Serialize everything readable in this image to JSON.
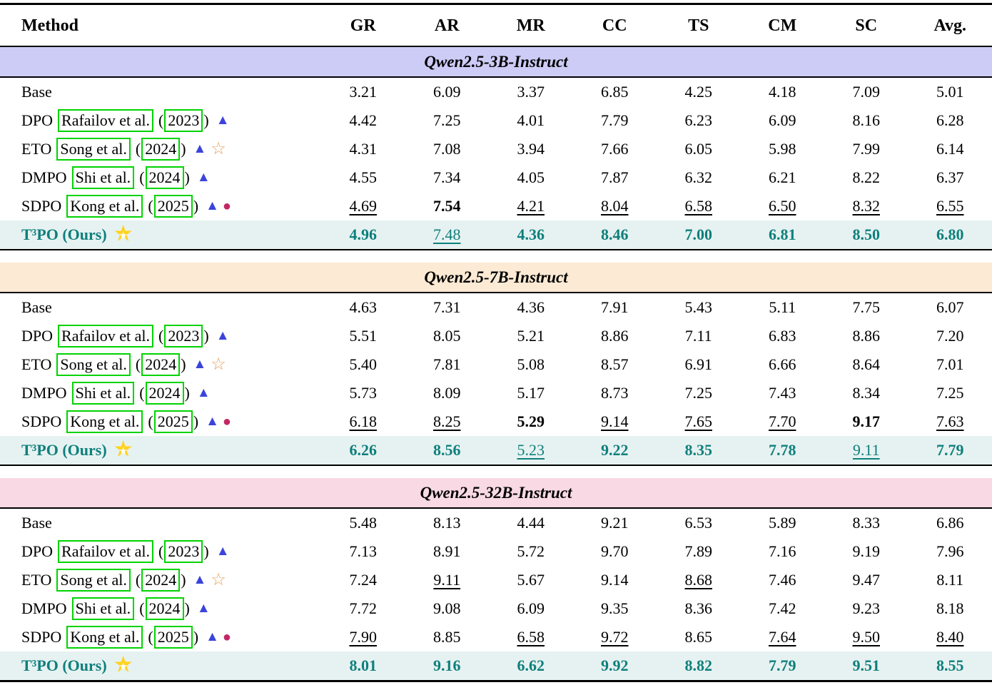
{
  "icons": {
    "triangle": "▲",
    "star_outline": "☆",
    "circle": "●",
    "gold_star": "★"
  },
  "colors": {
    "ours_text_teal": "#0e7f7c",
    "ours_row_bg": "#e6f2f1",
    "band_qwen3b": "#cdccf6",
    "band_qwen7b": "#fcead4",
    "band_qwen32b": "#f9d9e3",
    "citation_link_green": "#00d300",
    "triangle_blue": "#3b44da",
    "circle_crimson": "#c22765",
    "star_outline_orange": "#e5a05c",
    "gold_star_yellow": "#ffd21e"
  },
  "table": {
    "columns": [
      "Method",
      "GR",
      "AR",
      "MR",
      "CC",
      "TS",
      "CM",
      "SC",
      "Avg."
    ],
    "sections": [
      {
        "title": "Qwen2.5-3B-Instruct",
        "rows": [
          {
            "method": "Base",
            "values": [
              "3.21",
              "6.09",
              "3.37",
              "6.85",
              "4.25",
              "4.18",
              "7.09",
              "5.01"
            ]
          },
          {
            "method": "DPO",
            "cite_author": "Rafailov et al.",
            "cite_year": "2023",
            "values": [
              "4.42",
              "7.25",
              "4.01",
              "7.79",
              "6.23",
              "6.09",
              "8.16",
              "6.28"
            ]
          },
          {
            "method": "ETO",
            "cite_author": "Song et al.",
            "cite_year": "2024",
            "values": [
              "4.31",
              "7.08",
              "3.94",
              "7.66",
              "6.05",
              "5.98",
              "7.99",
              "6.14"
            ]
          },
          {
            "method": "DMPO",
            "cite_author": "Shi et al.",
            "cite_year": "2024",
            "values": [
              "4.55",
              "7.34",
              "4.05",
              "7.87",
              "6.32",
              "6.21",
              "8.22",
              "6.37"
            ]
          },
          {
            "method": "SDPO",
            "cite_author": "Kong et al.",
            "cite_year": "2025",
            "values": [
              "4.69",
              "7.54",
              "4.21",
              "8.04",
              "6.58",
              "6.50",
              "8.32",
              "6.55"
            ]
          },
          {
            "method": "T³PO (Ours)",
            "values": [
              "4.96",
              "7.48",
              "4.36",
              "8.46",
              "7.00",
              "6.81",
              "8.50",
              "6.80"
            ]
          }
        ]
      },
      {
        "title": "Qwen2.5-7B-Instruct",
        "rows": [
          {
            "method": "Base",
            "values": [
              "4.63",
              "7.31",
              "4.36",
              "7.91",
              "5.43",
              "5.11",
              "7.75",
              "6.07"
            ]
          },
          {
            "method": "DPO",
            "cite_author": "Rafailov et al.",
            "cite_year": "2023",
            "values": [
              "5.51",
              "8.05",
              "5.21",
              "8.86",
              "7.11",
              "6.83",
              "8.86",
              "7.20"
            ]
          },
          {
            "method": "ETO",
            "cite_author": "Song et al.",
            "cite_year": "2024",
            "values": [
              "5.40",
              "7.81",
              "5.08",
              "8.57",
              "6.91",
              "6.66",
              "8.64",
              "7.01"
            ]
          },
          {
            "method": "DMPO",
            "cite_author": "Shi et al.",
            "cite_year": "2024",
            "values": [
              "5.73",
              "8.09",
              "5.17",
              "8.73",
              "7.25",
              "7.43",
              "8.34",
              "7.25"
            ]
          },
          {
            "method": "SDPO",
            "cite_author": "Kong et al.",
            "cite_year": "2025",
            "values": [
              "6.18",
              "8.25",
              "5.29",
              "9.14",
              "7.65",
              "7.70",
              "9.17",
              "7.63"
            ]
          },
          {
            "method": "T³PO (Ours)",
            "values": [
              "6.26",
              "8.56",
              "5.23",
              "9.22",
              "8.35",
              "7.78",
              "9.11",
              "7.79"
            ]
          }
        ]
      },
      {
        "title": "Qwen2.5-32B-Instruct",
        "rows": [
          {
            "method": "Base",
            "values": [
              "5.48",
              "8.13",
              "4.44",
              "9.21",
              "6.53",
              "5.89",
              "8.33",
              "6.86"
            ]
          },
          {
            "method": "DPO",
            "cite_author": "Rafailov et al.",
            "cite_year": "2023",
            "values": [
              "7.13",
              "8.91",
              "5.72",
              "9.70",
              "7.89",
              "7.16",
              "9.19",
              "7.96"
            ]
          },
          {
            "method": "ETO",
            "cite_author": "Song et al.",
            "cite_year": "2024",
            "values": [
              "7.24",
              "9.11",
              "5.67",
              "9.14",
              "8.68",
              "7.46",
              "9.47",
              "8.11"
            ]
          },
          {
            "method": "DMPO",
            "cite_author": "Shi et al.",
            "cite_year": "2024",
            "values": [
              "7.72",
              "9.08",
              "6.09",
              "9.35",
              "8.36",
              "7.42",
              "9.23",
              "8.18"
            ]
          },
          {
            "method": "SDPO",
            "cite_author": "Kong et al.",
            "cite_year": "2025",
            "values": [
              "7.90",
              "8.85",
              "6.58",
              "9.72",
              "8.65",
              "7.64",
              "9.50",
              "8.40"
            ]
          },
          {
            "method": "T³PO (Ours)",
            "values": [
              "8.01",
              "9.16",
              "6.62",
              "9.92",
              "8.82",
              "7.79",
              "9.51",
              "8.55"
            ]
          }
        ]
      }
    ]
  }
}
